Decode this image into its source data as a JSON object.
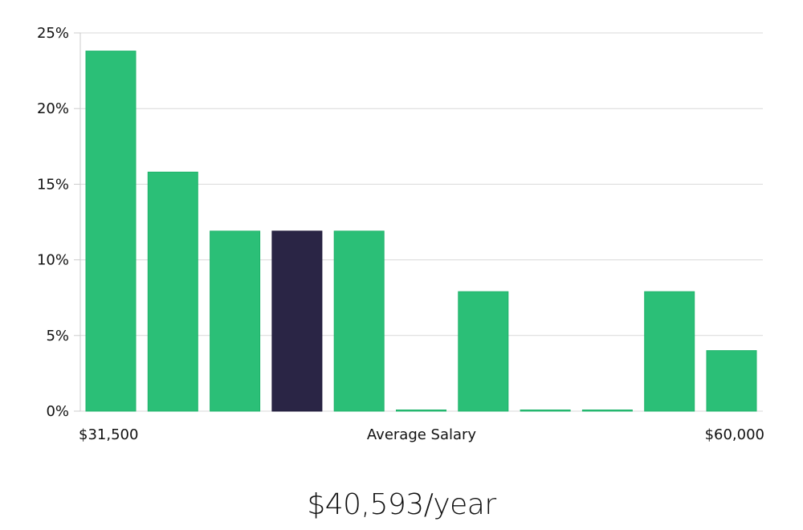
{
  "chart_data": {
    "type": "bar",
    "title": "",
    "xlabel": "Average Salary",
    "ylabel": "",
    "x_min_label": "$31,500",
    "x_max_label": "$60,000",
    "ylim": [
      0,
      25
    ],
    "yticks": [
      0,
      5,
      10,
      15,
      20,
      25
    ],
    "ytick_labels": [
      "0%",
      "5%",
      "10%",
      "15%",
      "20%",
      "25%"
    ],
    "grid": true,
    "values": [
      23.8,
      15.8,
      11.9,
      11.9,
      11.9,
      0,
      7.9,
      0,
      0,
      7.9,
      4.0
    ],
    "highlight_index": 3,
    "colors": {
      "bar": "#2bbf77",
      "bar_stroke": "#20b36b",
      "highlight": "#2a2545",
      "grid": "#d9d9d9",
      "axis": "#cccccc"
    }
  },
  "summary": {
    "salary": "$40,593/year"
  }
}
